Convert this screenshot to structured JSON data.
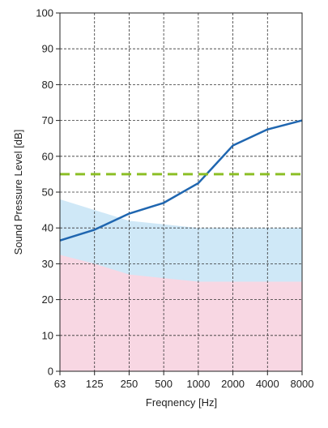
{
  "chart_data": {
    "type": "line",
    "title": "",
    "xlabel": "Freqnency [Hz]",
    "ylabel": "Sound Pressure Level [dB]",
    "x_categories": [
      "63",
      "125",
      "250",
      "500",
      "1000",
      "2000",
      "4000",
      "8000"
    ],
    "ylim": [
      0,
      100
    ],
    "y_ticks": [
      "0",
      "10",
      "20",
      "30",
      "40",
      "50",
      "60",
      "70",
      "80",
      "90",
      "100"
    ],
    "grid": true,
    "series": [
      {
        "type": "line",
        "color": "#1f66b0",
        "values": [
          36.5,
          39.5,
          44,
          47,
          52.5,
          63,
          67.5,
          70
        ]
      },
      {
        "type": "line",
        "style": "dashed",
        "color": "#8cbf26",
        "values": [
          55,
          55,
          55,
          55,
          55,
          55,
          55,
          55
        ]
      },
      {
        "type": "area",
        "color": "#cfe8f7",
        "x": [
          0,
          1,
          2,
          3,
          4,
          5,
          6,
          7
        ],
        "values": [
          48,
          45,
          42,
          41,
          40,
          40,
          40,
          40
        ]
      },
      {
        "type": "area",
        "color": "#f8d7e3",
        "x": [
          0,
          1,
          2,
          3,
          4,
          5,
          6,
          7
        ],
        "values": [
          32.5,
          30,
          27,
          26,
          25,
          25,
          25,
          25
        ]
      }
    ]
  }
}
